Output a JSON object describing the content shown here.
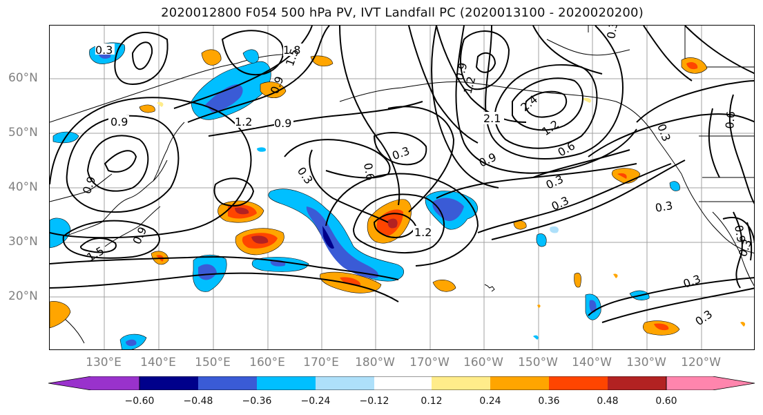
{
  "title": "2020012800 F054 500 hPa PV, IVT Landfall PC (2020013100 - 2020020200)",
  "lat_ticks": [
    "60°N",
    "50°N",
    "40°N",
    "30°N",
    "20°N"
  ],
  "lon_ticks": [
    "130°E",
    "140°E",
    "150°E",
    "160°E",
    "170°E",
    "180°W",
    "170°W",
    "160°W",
    "150°W",
    "140°W",
    "130°W",
    "120°W"
  ],
  "contour_labels": [
    "0.3",
    "1.8",
    "1.5",
    "0.9",
    "1.2",
    "0.9",
    "0.6",
    "0.3",
    "0.9",
    "1.2",
    "0.9",
    "2.1",
    "2.4",
    "1.2",
    "0.6",
    "0.9",
    "0.3",
    "0.3",
    "0.3",
    "0.3",
    "0.3",
    "0.6",
    "0.3",
    "0.3",
    "0.9",
    "1.5",
    "0.9",
    "1.2",
    "0.9",
    "0.3",
    "0.3"
  ],
  "colorbar": {
    "colors": [
      "#9932cc",
      "#00008b",
      "#3a5bd6",
      "#00bfff",
      "#aee0fa",
      "#ffffff",
      "#ffffff",
      "#ffec8a",
      "#ffa500",
      "#ff4500",
      "#b22222",
      "#ff85ad"
    ],
    "tick_labels": [
      "−0.60",
      "−0.48",
      "−0.36",
      "−0.24",
      "−0.12",
      "0.12",
      "0.24",
      "0.36",
      "0.48",
      "0.60"
    ]
  }
}
